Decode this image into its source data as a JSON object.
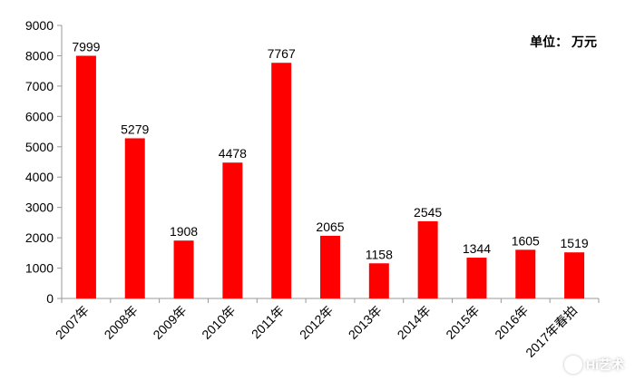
{
  "chart_data": {
    "type": "bar",
    "categories": [
      "2007年",
      "2008年",
      "2009年",
      "2010年",
      "2011年",
      "2012年",
      "2013年",
      "2014年",
      "2015年",
      "2016年",
      "2017年春拍"
    ],
    "values": [
      7999,
      5279,
      1908,
      4478,
      7767,
      2065,
      1158,
      2545,
      1344,
      1605,
      1519
    ],
    "data_labels": [
      "7999",
      "5279",
      "1908",
      "4478",
      "7767",
      "2065",
      "1158",
      "2545",
      "1344",
      "1605",
      "1519"
    ],
    "y_ticks": [
      "0",
      "1000",
      "2000",
      "3000",
      "4000",
      "5000",
      "6000",
      "7000",
      "8000",
      "9000"
    ],
    "ylim": [
      0,
      9000
    ],
    "unit": "单位：  万元",
    "grid": false,
    "bar_color": "#ff0000"
  },
  "watermark": {
    "text": "Hi艺术"
  }
}
